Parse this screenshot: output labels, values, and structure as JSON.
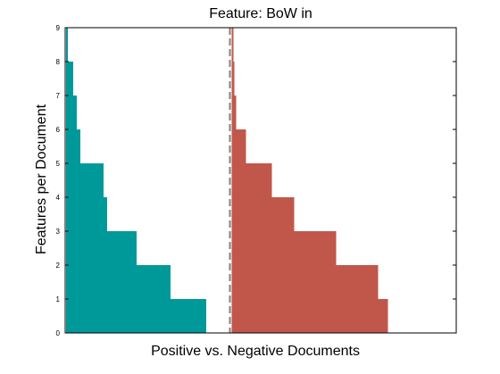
{
  "chart_data": {
    "type": "bar",
    "title": "Feature: BoW in",
    "xlabel": "Positive vs. Negative Documents",
    "ylabel": "Features per Document",
    "ylim": [
      0,
      9
    ],
    "yticks": [
      "0",
      "1",
      "2",
      "3",
      "4",
      "5",
      "6",
      "7",
      "8",
      "9"
    ],
    "grid": false,
    "orientation": "horizontal-steps",
    "divider": {
      "style": "dashed",
      "color": "#808080"
    },
    "series": [
      {
        "color": "#00999a",
        "steps": [
          {
            "y": [
              0,
              1
            ],
            "value": 157
          },
          {
            "y": [
              1,
              2
            ],
            "value": 117
          },
          {
            "y": [
              2,
              3
            ],
            "value": 79
          },
          {
            "y": [
              3,
              4
            ],
            "value": 46
          },
          {
            "y": [
              4,
              5
            ],
            "value": 42
          },
          {
            "y": [
              5,
              6
            ],
            "value": 16
          },
          {
            "y": [
              6,
              7
            ],
            "value": 12
          },
          {
            "y": [
              7,
              8
            ],
            "value": 8
          },
          {
            "y": [
              8,
              9
            ],
            "value": 2
          }
        ]
      },
      {
        "color": "#c1574a",
        "steps": [
          {
            "y": [
              0,
              1
            ],
            "value": 175
          },
          {
            "y": [
              1,
              2
            ],
            "value": 164
          },
          {
            "y": [
              2,
              3
            ],
            "value": 117
          },
          {
            "y": [
              3,
              4
            ],
            "value": 70
          },
          {
            "y": [
              4,
              5
            ],
            "value": 45
          },
          {
            "y": [
              5,
              6
            ],
            "value": 16
          },
          {
            "y": [
              6,
              7
            ],
            "value": 5
          },
          {
            "y": [
              7,
              8
            ],
            "value": 3
          },
          {
            "y": [
              8,
              9
            ],
            "value": 2
          }
        ]
      }
    ]
  }
}
